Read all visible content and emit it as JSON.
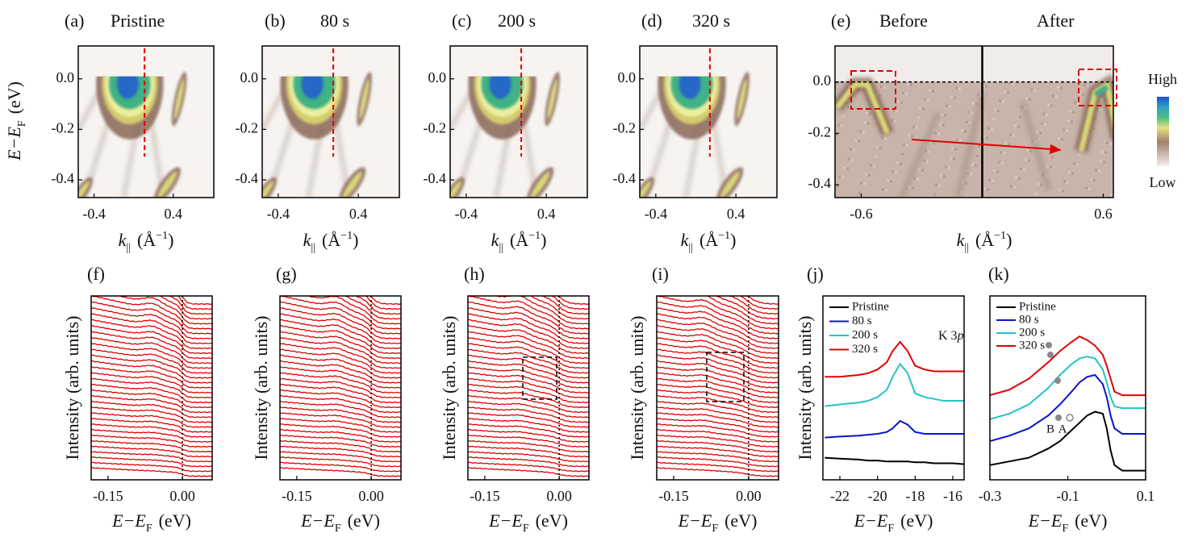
{
  "chart_data": [
    {
      "type": "heatmap",
      "label": "(a)",
      "title": "Pristine",
      "xlabel": {
        "var": "k",
        "sub": "||",
        "unit": "(Å",
        "sup": "−1",
        "close": ")"
      },
      "ylabel": {
        "var": "E−E",
        "sub": "F",
        "unit": "(eV)"
      },
      "xlim": [
        -0.56,
        0.81
      ],
      "ylim": [
        -0.47,
        0.13
      ],
      "xticks": [
        -0.4,
        0.4
      ],
      "yticks": [
        {
          "value": 0,
          "label": "0.0"
        },
        -0.2,
        -0.4
      ],
      "cut": 0.11
    },
    {
      "type": "heatmap",
      "label": "(b)",
      "title": "80 s",
      "xlabel": {
        "var": "k",
        "sub": "||",
        "unit": "(Å",
        "sup": "−1",
        "close": ")"
      },
      "xlim": [
        -0.56,
        0.81
      ],
      "ylim": [
        -0.47,
        0.13
      ],
      "xticks": [
        -0.4,
        0.4
      ],
      "yticks": [
        {
          "value": 0,
          "label": "0.0"
        },
        -0.2,
        -0.4
      ],
      "cut": 0.15
    },
    {
      "type": "heatmap",
      "label": "(c)",
      "title": "200 s",
      "xlabel": {
        "var": "k",
        "sub": "||",
        "unit": "(Å",
        "sup": "−1",
        "close": ")"
      },
      "xlim": [
        -0.56,
        0.81
      ],
      "ylim": [
        -0.47,
        0.13
      ],
      "xticks": [
        -0.4,
        0.4
      ],
      "yticks": [
        {
          "value": 0,
          "label": "0.0"
        },
        -0.2,
        -0.4
      ],
      "cut": 0.15
    },
    {
      "type": "heatmap",
      "label": "(d)",
      "title": "320 s",
      "xlabel": {
        "var": "k",
        "sub": "||",
        "unit": "(Å",
        "sup": "−1",
        "close": ")"
      },
      "xlim": [
        -0.56,
        0.81
      ],
      "ylim": [
        -0.47,
        0.13
      ],
      "xticks": [
        -0.4,
        0.4
      ],
      "yticks": [
        {
          "value": 0,
          "label": "0.0"
        },
        -0.2,
        -0.4
      ],
      "cut": 0.14
    },
    {
      "type": "heatmap2",
      "label": "(e)",
      "titles": [
        "Before",
        "After"
      ],
      "xlabel": {
        "var": "k",
        "sub": "||",
        "unit": "(Å",
        "sup": "−1",
        "close": ")"
      },
      "xlim": [
        -0.73,
        0.65
      ],
      "ylim": [
        -0.45,
        0.14
      ],
      "xticks": [
        -0.6,
        0.6
      ],
      "yticks": [
        {
          "value": 0,
          "label": "0.0"
        },
        -0.2,
        -0.4
      ],
      "fermi": 0,
      "divider": 0,
      "colorbar": [
        "High",
        "Low"
      ]
    },
    {
      "type": "edc",
      "label": "(f)",
      "xlabel": {
        "var": "E−E",
        "sub": "F",
        "unit": "(eV)"
      },
      "ylabel": "Intensity (arb. units)",
      "xlim": [
        -0.184,
        0.06
      ],
      "xticks": [
        -0.15,
        {
          "value": 0,
          "label": "0.00"
        }
      ],
      "fermi": 0,
      "color": "#e00000"
    },
    {
      "type": "edc",
      "label": "(g)",
      "xlabel": {
        "var": "E−E",
        "sub": "F",
        "unit": "(eV)"
      },
      "ylabel": "Intensity (arb. units)",
      "xlim": [
        -0.184,
        0.06
      ],
      "xticks": [
        -0.15,
        {
          "value": 0,
          "label": "0.00"
        }
      ],
      "fermi": 0,
      "color": "#e00000"
    },
    {
      "type": "edc",
      "label": "(h)",
      "xlabel": {
        "var": "E−E",
        "sub": "F",
        "unit": "(eV)"
      },
      "ylabel": "Intensity (arb. units)",
      "xlim": [
        -0.184,
        0.06
      ],
      "xticks": [
        -0.15,
        {
          "value": 0,
          "label": "0.00"
        }
      ],
      "fermi": 0,
      "color": "#e00000"
    },
    {
      "type": "edc",
      "label": "(i)",
      "xlabel": {
        "var": "E−E",
        "sub": "F",
        "unit": "(eV)"
      },
      "ylabel": "Intensity (arb. units)",
      "xlim": [
        -0.184,
        0.06
      ],
      "xticks": [
        -0.15,
        {
          "value": 0,
          "label": "0.00"
        }
      ],
      "fermi": 0,
      "color": "#e00000"
    },
    {
      "type": "line",
      "label": "(j)",
      "xlabel": {
        "var": "E−E",
        "sub": "F",
        "unit": "(eV)"
      },
      "ylabel": "Intensity (arb. units)",
      "annotation": {
        "text": "K 3",
        "italic": "p"
      },
      "legend": "upper left",
      "xlim": [
        -22.9,
        -15.4
      ],
      "ylim": [
        0,
        1
      ],
      "xticks": [
        -22,
        -20,
        -18,
        -16
      ],
      "x": [
        -22.8,
        -22,
        -21,
        -20.5,
        -20,
        -19.5,
        -19.2,
        -18.8,
        -18.4,
        -18,
        -17.5,
        -17,
        -16.5,
        -16,
        -15.4
      ],
      "series": [
        {
          "name": "Pristine",
          "color": "#000000",
          "values": [
            0.12,
            0.115,
            0.11,
            0.105,
            0.105,
            0.1,
            0.1,
            0.1,
            0.1,
            0.095,
            0.095,
            0.09,
            0.09,
            0.09,
            0.085
          ]
        },
        {
          "name": "80 s",
          "color": "#0a14d0",
          "values": [
            0.23,
            0.235,
            0.24,
            0.245,
            0.25,
            0.26,
            0.28,
            0.32,
            0.3,
            0.26,
            0.25,
            0.25,
            0.25,
            0.25,
            0.25
          ]
        },
        {
          "name": "200 s",
          "color": "#22c4c4",
          "values": [
            0.4,
            0.41,
            0.42,
            0.43,
            0.45,
            0.49,
            0.56,
            0.63,
            0.58,
            0.47,
            0.45,
            0.44,
            0.43,
            0.43,
            0.43
          ]
        },
        {
          "name": "320 s",
          "color": "#e00000",
          "values": [
            0.56,
            0.56,
            0.57,
            0.58,
            0.6,
            0.64,
            0.7,
            0.75,
            0.7,
            0.62,
            0.6,
            0.59,
            0.59,
            0.59,
            0.59
          ]
        }
      ]
    },
    {
      "type": "line",
      "label": "(k)",
      "xlabel": {
        "var": "E−E",
        "sub": "F",
        "unit": "(eV)"
      },
      "annotations": [
        "B",
        "A"
      ],
      "legend": "upper left",
      "xlim": [
        -0.3,
        0.1
      ],
      "ylim": [
        0,
        1
      ],
      "xticks": [
        -0.3,
        -0.1,
        0.1
      ],
      "x": [
        -0.3,
        -0.25,
        -0.2,
        -0.15,
        -0.12,
        -0.09,
        -0.07,
        -0.05,
        -0.03,
        -0.01,
        0.0,
        0.01,
        0.02,
        0.04,
        0.06,
        0.1
      ],
      "series": [
        {
          "name": "Pristine",
          "color": "#000000",
          "values": [
            0.08,
            0.1,
            0.12,
            0.17,
            0.21,
            0.27,
            0.31,
            0.35,
            0.37,
            0.36,
            0.28,
            0.16,
            0.08,
            0.05,
            0.05,
            0.05
          ]
        },
        {
          "name": "80 s",
          "color": "#0a14d0",
          "values": [
            0.21,
            0.24,
            0.28,
            0.35,
            0.41,
            0.48,
            0.53,
            0.56,
            0.57,
            0.52,
            0.45,
            0.35,
            0.28,
            0.25,
            0.25,
            0.25
          ]
        },
        {
          "name": "200 s",
          "color": "#22c4c4",
          "values": [
            0.33,
            0.36,
            0.41,
            0.5,
            0.57,
            0.63,
            0.66,
            0.67,
            0.66,
            0.6,
            0.53,
            0.45,
            0.4,
            0.39,
            0.39,
            0.39
          ]
        },
        {
          "name": "320 s",
          "color": "#e00000",
          "values": [
            0.46,
            0.49,
            0.55,
            0.64,
            0.7,
            0.75,
            0.78,
            0.76,
            0.73,
            0.68,
            0.62,
            0.55,
            0.48,
            0.46,
            0.46,
            0.46
          ]
        }
      ]
    }
  ]
}
